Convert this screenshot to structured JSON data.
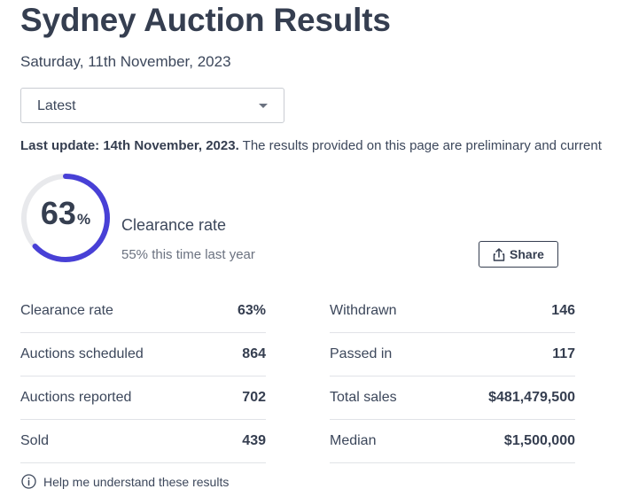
{
  "page": {
    "title": "Sydney Auction Results",
    "date": "Saturday, 11th November, 2023"
  },
  "period_select": {
    "value": "Latest"
  },
  "update": {
    "bold": "Last update: 14th November, 2023.",
    "text": " The results provided on this page are preliminary and current"
  },
  "clearance": {
    "rate_value": 63,
    "number": "63",
    "percent_sign": "%",
    "label": "Clearance rate",
    "comparison": "55% this time last year",
    "accent_color": "#4840d6",
    "track_color": "#e8e9ec"
  },
  "share": {
    "label": "Share",
    "icon": "share-icon"
  },
  "stats_left": [
    {
      "label": "Clearance rate",
      "value": "63%"
    },
    {
      "label": "Auctions scheduled",
      "value": "864"
    },
    {
      "label": "Auctions reported",
      "value": "702"
    },
    {
      "label": "Sold",
      "value": "439"
    }
  ],
  "stats_right": [
    {
      "label": "Withdrawn",
      "value": "146"
    },
    {
      "label": "Passed in",
      "value": "117"
    },
    {
      "label": "Total sales",
      "value": "$481,479,500"
    },
    {
      "label": "Median",
      "value": "$1,500,000"
    }
  ],
  "help": {
    "label": "Help me understand these results",
    "icon": "info-icon"
  }
}
